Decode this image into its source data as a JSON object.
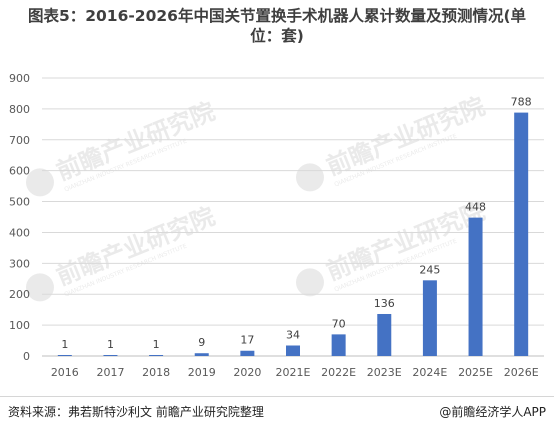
{
  "header": {
    "title_line1": "图表5：2016-2026年中国关节置换手术机器人累计数量及预测情况(单",
    "title_line2": "位：套)"
  },
  "watermark": {
    "text": "前瞻产业研究院",
    "subtext": "QIANZHAN INDUSTRY RESEARCH INSTITUTE"
  },
  "footer": {
    "source": "资料来源：弗若斯特沙利文 前瞻产业研究院整理",
    "brand": "@前瞻经济学人APP"
  },
  "colors": {
    "bar": "#4472C4",
    "grid": "#D9D9D9",
    "axis_text": "#595959",
    "label_text": "#404040"
  },
  "chart_data": {
    "type": "bar",
    "categories": [
      "2016",
      "2017",
      "2018",
      "2019",
      "2020",
      "2021E",
      "2022E",
      "2023E",
      "2024E",
      "2025E",
      "2026E"
    ],
    "values": [
      1,
      1,
      1,
      9,
      17,
      34,
      70,
      136,
      245,
      448,
      788
    ],
    "data_labels": [
      "1",
      "1",
      "1",
      "9",
      "17",
      "34",
      "70",
      "136",
      "245",
      "448",
      "788"
    ],
    "yticks": [
      "0",
      "100",
      "200",
      "300",
      "400",
      "500",
      "600",
      "700",
      "800",
      "900"
    ],
    "ylim": [
      0,
      900
    ],
    "grid": true,
    "legend": "none"
  }
}
